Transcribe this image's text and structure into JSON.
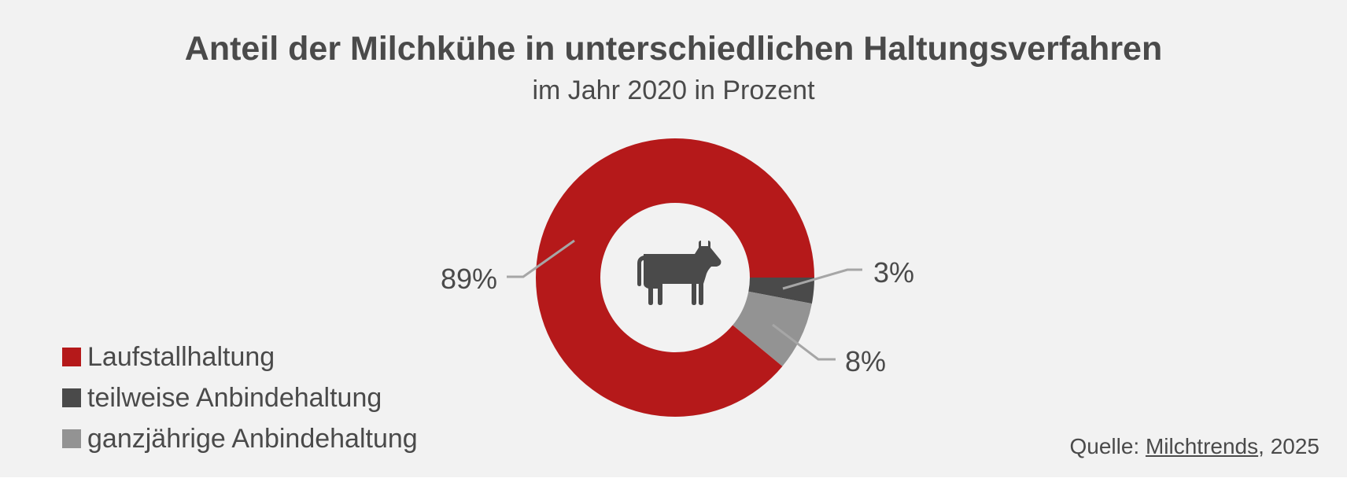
{
  "chart_data": {
    "type": "pie",
    "donut": true,
    "title": "Anteil der Milchkühe in unterschiedlichen Haltungsverfahren",
    "subtitle": "im Jahr 2020 in Prozent",
    "categories": [
      "Laufstallhaltung",
      "teilweise Anbindehaltung",
      "ganzjährige Anbindehaltung"
    ],
    "values": [
      89,
      3,
      8
    ],
    "data_labels": [
      "89%",
      "3%",
      "8%"
    ],
    "colors": [
      "#b5191a",
      "#4a4a4a",
      "#939393"
    ],
    "legend_position": "bottom-left",
    "center_icon": "cow-icon"
  },
  "source": {
    "prefix": "Quelle: ",
    "link": "Milchtrends",
    "suffix": ", 2025"
  }
}
